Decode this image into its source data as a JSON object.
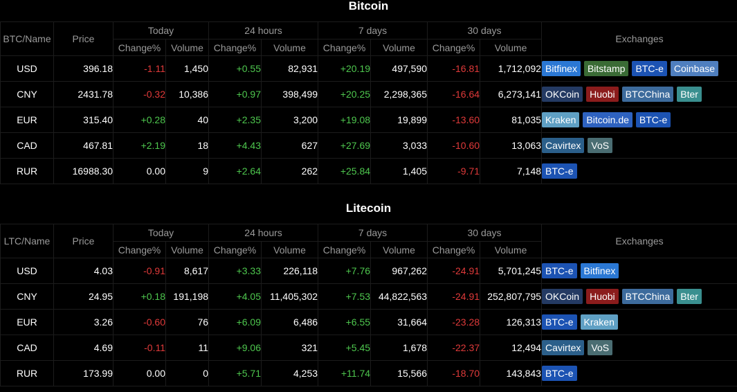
{
  "headers": {
    "today": "Today",
    "h24": "24 hours",
    "d7": "7 days",
    "d30": "30 days",
    "price": "Price",
    "exchanges": "Exchanges",
    "change": "Change%",
    "volume": "Volume"
  },
  "exchange_colors": {
    "Bitfinex": "#2b78d4",
    "Bitstamp": "#3a6b35",
    "BTC-e": "#1c53b3",
    "Coinbase": "#4f7fbf",
    "OKCoin": "#243a63",
    "Huobi": "#8b1c1c",
    "BTCChina": "#3d6b9c",
    "Bter": "#3a8f8f",
    "Kraken": "#5fa0c4",
    "Bitcoin.de": "#2e62c0",
    "Cavirtex": "#2b5f8a",
    "VoS": "#4a6d72"
  },
  "sections": [
    {
      "title": "Bitcoin",
      "name_header": "BTC/Name",
      "rows": [
        {
          "cur": "USD",
          "price": "396.18",
          "t_c": "-1.11",
          "t_v": "1,450",
          "h_c": "+0.55",
          "h_v": "82,931",
          "w_c": "+20.19",
          "w_v": "497,590",
          "m_c": "-16.81",
          "m_v": "1,712,092",
          "ex": [
            "Bitfinex",
            "Bitstamp",
            "BTC-e",
            "Coinbase"
          ]
        },
        {
          "cur": "CNY",
          "price": "2431.78",
          "t_c": "-0.32",
          "t_v": "10,386",
          "h_c": "+0.97",
          "h_v": "398,499",
          "w_c": "+20.25",
          "w_v": "2,298,365",
          "m_c": "-16.64",
          "m_v": "6,273,141",
          "ex": [
            "OKCoin",
            "Huobi",
            "BTCChina",
            "Bter"
          ]
        },
        {
          "cur": "EUR",
          "price": "315.40",
          "t_c": "+0.28",
          "t_v": "40",
          "h_c": "+2.35",
          "h_v": "3,200",
          "w_c": "+19.08",
          "w_v": "19,899",
          "m_c": "-13.60",
          "m_v": "81,035",
          "ex": [
            "Kraken",
            "Bitcoin.de",
            "BTC-e"
          ]
        },
        {
          "cur": "CAD",
          "price": "467.81",
          "t_c": "+2.19",
          "t_v": "18",
          "h_c": "+4.43",
          "h_v": "627",
          "w_c": "+27.69",
          "w_v": "3,033",
          "m_c": "-10.60",
          "m_v": "13,063",
          "ex": [
            "Cavirtex",
            "VoS"
          ]
        },
        {
          "cur": "RUR",
          "price": "16988.30",
          "t_c": "0.00",
          "t_v": "9",
          "h_c": "+2.64",
          "h_v": "262",
          "w_c": "+25.84",
          "w_v": "1,405",
          "m_c": "-9.71",
          "m_v": "7,148",
          "ex": [
            "BTC-e"
          ]
        }
      ]
    },
    {
      "title": "Litecoin",
      "name_header": "LTC/Name",
      "rows": [
        {
          "cur": "USD",
          "price": "4.03",
          "t_c": "-0.91",
          "t_v": "8,617",
          "h_c": "+3.33",
          "h_v": "226,118",
          "w_c": "+7.76",
          "w_v": "967,262",
          "m_c": "-24.91",
          "m_v": "5,701,245",
          "ex": [
            "BTC-e",
            "Bitfinex"
          ]
        },
        {
          "cur": "CNY",
          "price": "24.95",
          "t_c": "+0.18",
          "t_v": "191,198",
          "h_c": "+4.05",
          "h_v": "11,405,302",
          "w_c": "+7.53",
          "w_v": "44,822,563",
          "m_c": "-24.91",
          "m_v": "252,807,795",
          "ex": [
            "OKCoin",
            "Huobi",
            "BTCChina",
            "Bter"
          ]
        },
        {
          "cur": "EUR",
          "price": "3.26",
          "t_c": "-0.60",
          "t_v": "76",
          "h_c": "+6.09",
          "h_v": "6,486",
          "w_c": "+6.55",
          "w_v": "31,664",
          "m_c": "-23.28",
          "m_v": "126,313",
          "ex": [
            "BTC-e",
            "Kraken"
          ]
        },
        {
          "cur": "CAD",
          "price": "4.69",
          "t_c": "-0.11",
          "t_v": "11",
          "h_c": "+9.06",
          "h_v": "321",
          "w_c": "+5.45",
          "w_v": "1,678",
          "m_c": "-22.37",
          "m_v": "12,494",
          "ex": [
            "Cavirtex",
            "VoS"
          ]
        },
        {
          "cur": "RUR",
          "price": "173.99",
          "t_c": "0.00",
          "t_v": "0",
          "h_c": "+5.71",
          "h_v": "4,253",
          "w_c": "+11.74",
          "w_v": "15,566",
          "m_c": "-18.70",
          "m_v": "143,843",
          "ex": [
            "BTC-e"
          ]
        }
      ]
    }
  ]
}
